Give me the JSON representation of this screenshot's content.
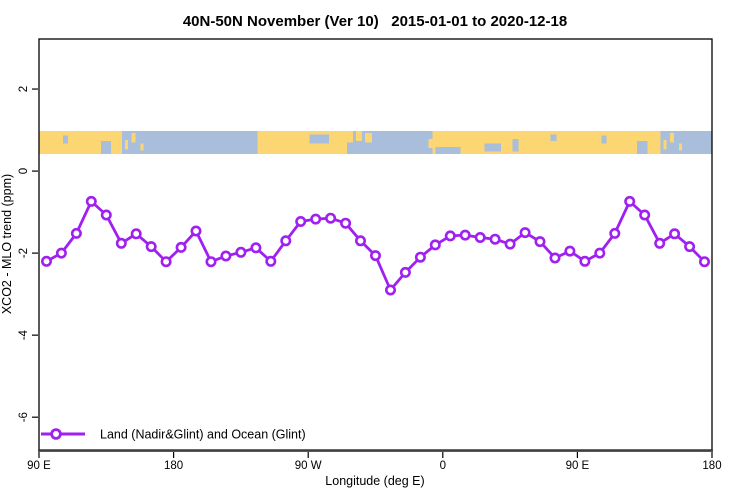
{
  "title": "40N-50N November (Ver 10)   2015-01-01 to 2020-12-18",
  "chart_data": {
    "type": "line",
    "title": "40N-50N November (Ver 10)   2015-01-01 to 2020-12-18",
    "xlabel": "Longitude (deg E)",
    "ylabel": "XCO2 - MLO trend (ppm)",
    "xlim": [
      90,
      540
    ],
    "ylim": [
      -6.8,
      3.22
    ],
    "grid": false,
    "x_ticks": [
      {
        "lon": 90,
        "label": "90 E"
      },
      {
        "lon": 180,
        "label": "180"
      },
      {
        "lon": 270,
        "label": "90 W"
      },
      {
        "lon": 360,
        "label": "0"
      },
      {
        "lon": 450,
        "label": "90 E"
      },
      {
        "lon": 540,
        "label": "180"
      }
    ],
    "y_ticks": [
      {
        "value": 2,
        "label": "2"
      },
      {
        "value": 0,
        "label": "0"
      },
      {
        "value": -2,
        "label": "-2"
      },
      {
        "value": -4,
        "label": "-4"
      },
      {
        "value": -6,
        "label": "-6"
      }
    ],
    "series": [
      {
        "name": "Land (Nadir&Glint) and Ocean (Glint)",
        "color": "#A020F0",
        "marker": "open-circle",
        "x": [
          95,
          105,
          115,
          125,
          135,
          145,
          155,
          165,
          175,
          185,
          195,
          205,
          215,
          225,
          235,
          245,
          255,
          265,
          275,
          285,
          295,
          305,
          315,
          325,
          335,
          345,
          355,
          365,
          375,
          385,
          395,
          405,
          415,
          425,
          435,
          445,
          455,
          465,
          475,
          485,
          495,
          505,
          515,
          525,
          535
        ],
        "values": [
          -2.2,
          -2.0,
          -1.52,
          -0.74,
          -1.07,
          -1.76,
          -1.53,
          -1.84,
          -2.21,
          -1.86,
          -1.46,
          -2.21,
          -2.07,
          -1.98,
          -1.87,
          -2.2,
          -1.7,
          -1.23,
          -1.17,
          -1.15,
          -1.27,
          -1.7,
          -2.06,
          -2.9,
          -2.47,
          -2.1,
          -1.8,
          -1.58,
          -1.56,
          -1.62,
          -1.66,
          -1.78,
          -1.5,
          -1.72,
          -2.12,
          -1.95,
          -2.2,
          -2.0,
          -1.52,
          -0.74,
          -1.07,
          -1.76,
          -1.53,
          -1.84,
          -2.21
        ]
      }
    ],
    "legend": {
      "position": "bottom-left",
      "label": "Land (Nadir&Glint) and Ocean (Glint)"
    },
    "map_band": {
      "description": "world map strip for 40N-50N latitude band drawn across plot",
      "top_value": 0.98,
      "bottom_value": 0.42,
      "land_color": "#FCD672",
      "ocean_color": "#A8BEDB",
      "base": "land",
      "ocean_areas": [
        {
          "from": 145.5,
          "to": 236,
          "top": 0,
          "bottom": 1
        },
        {
          "from": 106,
          "to": 109.5,
          "top": 0.2,
          "bottom": 0.55
        },
        {
          "from": 131.5,
          "to": 138,
          "top": 0.45,
          "bottom": 1
        },
        {
          "from": 271,
          "to": 284,
          "top": 0.15,
          "bottom": 0.55
        },
        {
          "from": 296,
          "to": 300,
          "top": 0.5,
          "bottom": 1
        },
        {
          "from": 300,
          "to": 353,
          "top": 0,
          "bottom": 1
        },
        {
          "from": 355,
          "to": 372,
          "top": 0.7,
          "bottom": 1
        },
        {
          "from": 388,
          "to": 399,
          "top": 0.55,
          "bottom": 0.9
        },
        {
          "from": 406.5,
          "to": 410.5,
          "top": 0.35,
          "bottom": 0.9
        },
        {
          "from": 432,
          "to": 436,
          "top": 0.15,
          "bottom": 0.45
        },
        {
          "from": 466,
          "to": 469.5,
          "top": 0.2,
          "bottom": 0.55
        },
        {
          "from": 490,
          "to": 497,
          "top": 0.45,
          "bottom": 1
        },
        {
          "from": 505.5,
          "to": 540,
          "top": 0,
          "bottom": 1
        }
      ],
      "land_islands": [
        {
          "from": 147.5,
          "to": 149.5,
          "top": 0.4,
          "bottom": 0.8
        },
        {
          "from": 152,
          "to": 154.5,
          "top": 0.1,
          "bottom": 0.5
        },
        {
          "from": 158,
          "to": 160,
          "top": 0.55,
          "bottom": 0.85
        },
        {
          "from": 302,
          "to": 306,
          "top": 0,
          "bottom": 0.45
        },
        {
          "from": 308,
          "to": 312.5,
          "top": 0.1,
          "bottom": 0.5
        },
        {
          "from": 350.5,
          "to": 353,
          "top": 0.35,
          "bottom": 0.75
        },
        {
          "from": 501,
          "to": 504,
          "top": 0.55,
          "bottom": 0.9
        },
        {
          "from": 507.5,
          "to": 509.5,
          "top": 0.4,
          "bottom": 0.8
        },
        {
          "from": 512,
          "to": 514.5,
          "top": 0.1,
          "bottom": 0.5
        },
        {
          "from": 518,
          "to": 520,
          "top": 0.55,
          "bottom": 0.85
        }
      ]
    }
  }
}
